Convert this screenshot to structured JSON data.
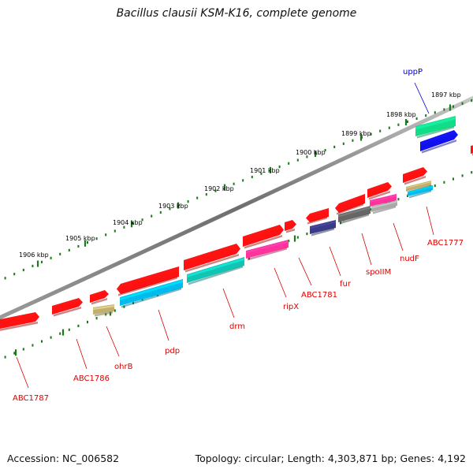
{
  "title": "Bacillus clausii KSM-K16, complete genome",
  "accession": "Accession: NC_006582",
  "summary": "Topology: circular; Length: 4,303,871 bp; Genes: 4,192",
  "scale_labels": [
    "1906 kbp",
    "1905 kbp",
    "1904 kbp",
    "1903 kbp",
    "1902 kbp",
    "1901 kbp",
    "1900 kbp",
    "1899 kbp",
    "1898 kbp",
    "1897 kbp"
  ],
  "gene_labels": [
    {
      "text": "uppP",
      "color": "#0000cc"
    },
    {
      "text": "ABC1777",
      "color": "#dd0000"
    },
    {
      "text": "nudF",
      "color": "#dd0000"
    },
    {
      "text": "spoIIM",
      "color": "#dd0000"
    },
    {
      "text": "fur",
      "color": "#dd0000"
    },
    {
      "text": "ABC1781",
      "color": "#dd0000"
    },
    {
      "text": "ripX",
      "color": "#dd0000"
    },
    {
      "text": "drm",
      "color": "#dd0000"
    },
    {
      "text": "pdp",
      "color": "#dd0000"
    },
    {
      "text": "ohrB",
      "color": "#dd0000"
    },
    {
      "text": "ABC1786",
      "color": "#dd0000"
    },
    {
      "text": "ABC1787",
      "color": "#dd0000"
    }
  ],
  "colors": {
    "backbone": "#7a7a7a",
    "tick": "#1a7a1a",
    "red": "#ff1111",
    "cyan": "#00bbee",
    "teal": "#11c4b4",
    "pink": "#ff3399",
    "navy": "#3a3a88",
    "gray": "#666666",
    "khaki": "#c0b070",
    "green": "#11dd88",
    "blue": "#1111ee",
    "silver": "#aaaaaa"
  }
}
